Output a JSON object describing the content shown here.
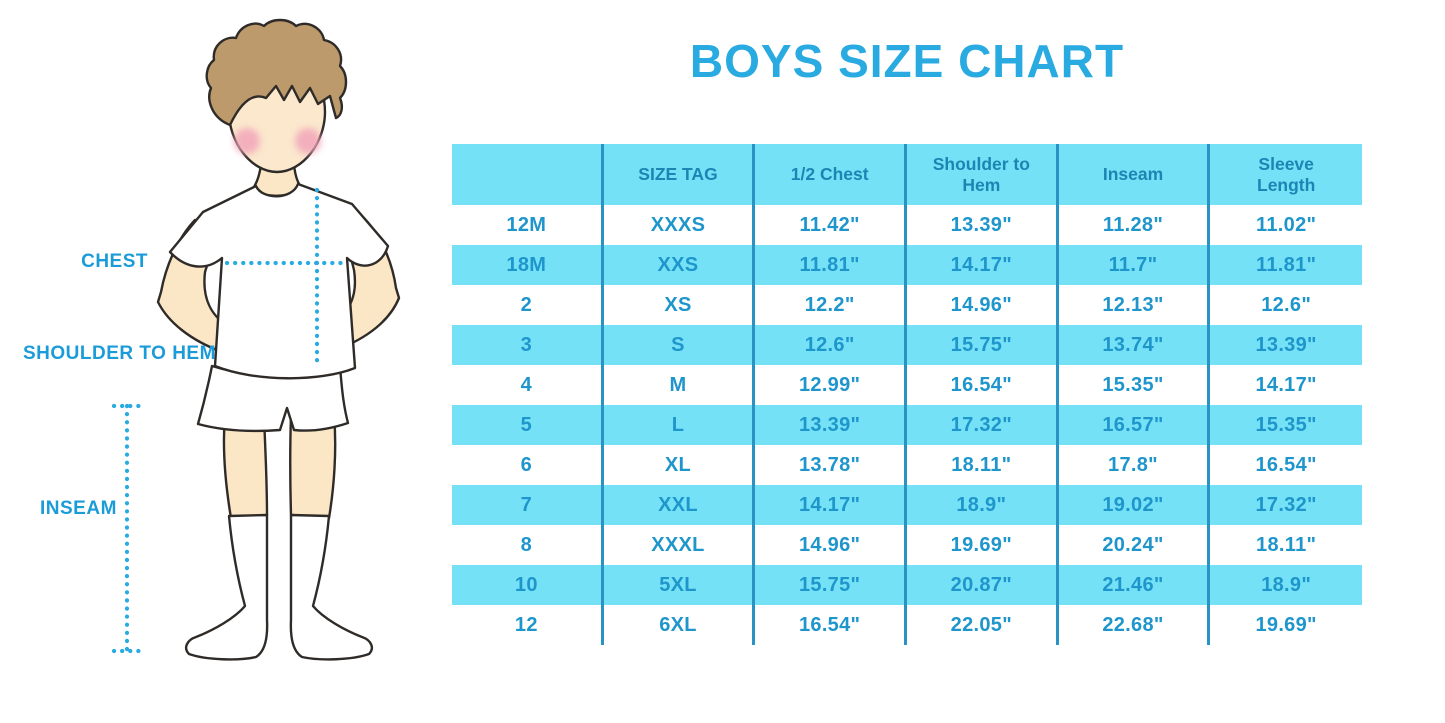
{
  "title": {
    "text": "BOYS SIZE CHART"
  },
  "figure": {
    "labels": {
      "chest": "CHEST",
      "shoulder_to_hem": "SHOULDER TO HEM",
      "inseam": "INSEAM"
    }
  },
  "colors": {
    "title_text": "#29ABE2",
    "table_fill": "#74E1F7",
    "table_divider": "#2B93C4",
    "table_header_text": "#1B86B3",
    "table_body_text": "#1F96CB",
    "figure_label_text": "#1B9CD9",
    "measure_dots": "#29ABE2",
    "skin": "#FBE7C6",
    "hair": "#BD9A6B",
    "cheeks": "#F2A6BA",
    "outline": "#2F2B28"
  },
  "chart_data": {
    "type": "table",
    "title": "BOYS SIZE CHART",
    "columns": [
      "",
      "SIZE TAG",
      "1/2 Chest",
      "Shoulder to Hem",
      "Inseam",
      "Sleeve Length"
    ],
    "rows": [
      [
        "12M",
        "XXXS",
        "11.42\"",
        "13.39\"",
        "11.28\"",
        "11.02\""
      ],
      [
        "18M",
        "XXS",
        "11.81\"",
        "14.17\"",
        "11.7\"",
        "11.81\""
      ],
      [
        "2",
        "XS",
        "12.2\"",
        "14.96\"",
        "12.13\"",
        "12.6\""
      ],
      [
        "3",
        "S",
        "12.6\"",
        "15.75\"",
        "13.74\"",
        "13.39\""
      ],
      [
        "4",
        "M",
        "12.99\"",
        "16.54\"",
        "15.35\"",
        "14.17\""
      ],
      [
        "5",
        "L",
        "13.39\"",
        "17.32\"",
        "16.57\"",
        "15.35\""
      ],
      [
        "6",
        "XL",
        "13.78\"",
        "18.11\"",
        "17.8\"",
        "16.54\""
      ],
      [
        "7",
        "XXL",
        "14.17\"",
        "18.9\"",
        "19.02\"",
        "17.32\""
      ],
      [
        "8",
        "XXXL",
        "14.96\"",
        "19.69\"",
        "20.24\"",
        "18.11\""
      ],
      [
        "10",
        "5XL",
        "15.75\"",
        "20.87\"",
        "21.46\"",
        "18.9\""
      ],
      [
        "12",
        "6XL",
        "16.54\"",
        "22.05\"",
        "22.68\"",
        "19.69\""
      ]
    ]
  }
}
